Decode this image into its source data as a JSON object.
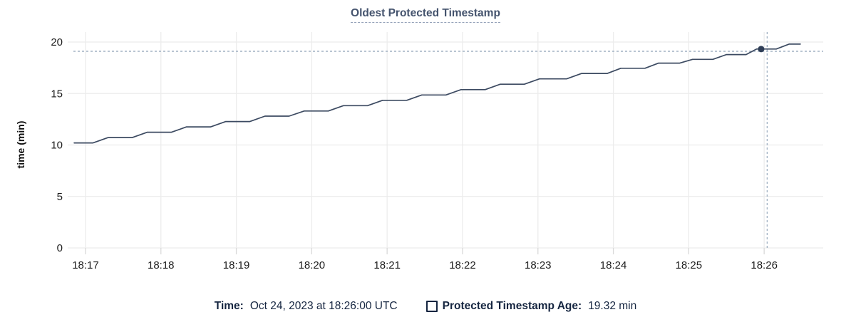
{
  "colors": {
    "line": "#3c4a61",
    "marker": "#2e3d56",
    "grid": "#ececec",
    "axis_tick": "#d9d9d9",
    "tick_text": "#1c1c1c",
    "title": "#44536d",
    "title_underline": "#93a1b8",
    "crosshair": "#a2b2c3",
    "legend_text": "#152540",
    "background": "#ffffff"
  },
  "chart_data": {
    "type": "line",
    "title": "Oldest Protected Timestamp",
    "xlabel": "",
    "ylabel": "time (min)",
    "grid": true,
    "legend_position": "bottom",
    "y_ticks": [
      0,
      5,
      10,
      15,
      20
    ],
    "ylim": [
      0,
      20
    ],
    "x_tick_labels": [
      "18:17",
      "18:18",
      "18:19",
      "18:20",
      "18:21",
      "18:22",
      "18:23",
      "18:24",
      "18:25",
      "18:26"
    ],
    "x_tick_minutes": [
      17,
      18,
      19,
      20,
      21,
      22,
      23,
      24,
      25,
      26
    ],
    "xlim_minutes": [
      16.764,
      26.783
    ],
    "series": [
      {
        "name": "Protected Timestamp Age",
        "unit": "min",
        "points": [
          [
            16.85,
            10.2
          ],
          [
            17.1,
            10.2
          ],
          [
            17.3,
            10.72
          ],
          [
            17.62,
            10.72
          ],
          [
            17.82,
            11.24
          ],
          [
            18.14,
            11.24
          ],
          [
            18.34,
            11.76
          ],
          [
            18.66,
            11.76
          ],
          [
            18.86,
            12.28
          ],
          [
            19.18,
            12.28
          ],
          [
            19.38,
            12.8
          ],
          [
            19.7,
            12.8
          ],
          [
            19.9,
            13.3
          ],
          [
            20.22,
            13.3
          ],
          [
            20.42,
            13.82
          ],
          [
            20.74,
            13.82
          ],
          [
            20.94,
            14.34
          ],
          [
            21.26,
            14.34
          ],
          [
            21.46,
            14.86
          ],
          [
            21.78,
            14.86
          ],
          [
            21.98,
            15.38
          ],
          [
            22.3,
            15.38
          ],
          [
            22.5,
            15.9
          ],
          [
            22.82,
            15.9
          ],
          [
            23.02,
            16.42
          ],
          [
            23.38,
            16.42
          ],
          [
            23.58,
            16.95
          ],
          [
            23.92,
            16.95
          ],
          [
            24.1,
            17.45
          ],
          [
            24.42,
            17.45
          ],
          [
            24.6,
            17.95
          ],
          [
            24.88,
            17.95
          ],
          [
            25.05,
            18.32
          ],
          [
            25.32,
            18.32
          ],
          [
            25.5,
            18.78
          ],
          [
            25.76,
            18.78
          ],
          [
            25.9,
            19.32
          ],
          [
            26.16,
            19.32
          ],
          [
            26.33,
            19.8
          ],
          [
            26.48,
            19.8
          ]
        ]
      }
    ],
    "hover_marker": {
      "minute": 25.96,
      "value": 19.32,
      "time_label": "18:26:00",
      "value_label": "19.32 min"
    },
    "crosshair": {
      "minute": 26.04,
      "value": 19.1
    }
  },
  "legend": {
    "time_label": "Time:",
    "time_value": "Oct 24, 2023 at 18:26:00 UTC",
    "series_label": "Protected Timestamp Age:",
    "series_value": "19.32 min"
  }
}
